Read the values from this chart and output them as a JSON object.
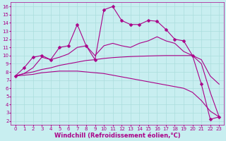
{
  "xlabel": "Windchill (Refroidissement éolien,°C)",
  "background_color": "#c8eef0",
  "grid_color": "#aadddd",
  "line_color": "#aa0088",
  "xlim": [
    -0.5,
    23.5
  ],
  "ylim": [
    1.5,
    16.5
  ],
  "xticks": [
    0,
    1,
    2,
    3,
    4,
    5,
    6,
    7,
    8,
    9,
    10,
    11,
    12,
    13,
    14,
    15,
    16,
    17,
    18,
    19,
    20,
    21,
    22,
    23
  ],
  "yticks": [
    2,
    3,
    4,
    5,
    6,
    7,
    8,
    9,
    10,
    11,
    12,
    13,
    14,
    15,
    16
  ],
  "series": [
    {
      "x": [
        0,
        1,
        2,
        3,
        4,
        5,
        6,
        7,
        8,
        9,
        10,
        11,
        12,
        13,
        14,
        15,
        16,
        17,
        18,
        19,
        20,
        21,
        22,
        23
      ],
      "y": [
        7.5,
        8.5,
        9.8,
        10.0,
        9.5,
        11.0,
        11.2,
        13.8,
        11.2,
        9.5,
        15.6,
        16.0,
        14.3,
        13.8,
        13.8,
        14.3,
        14.2,
        13.2,
        12.0,
        11.8,
        10.0,
        6.5,
        2.2,
        2.5
      ],
      "marker": true
    },
    {
      "x": [
        0,
        1,
        2,
        3,
        4,
        5,
        6,
        7,
        8,
        9,
        10,
        11,
        12,
        13,
        14,
        15,
        16,
        17,
        18,
        19,
        20,
        21,
        22,
        23
      ],
      "y": [
        7.5,
        7.8,
        8.5,
        9.8,
        9.5,
        9.8,
        10.2,
        11.0,
        11.2,
        10.0,
        11.2,
        11.5,
        11.2,
        11.0,
        11.5,
        11.8,
        12.3,
        11.8,
        11.5,
        10.5,
        10.0,
        9.5,
        7.5,
        6.5
      ],
      "marker": false
    },
    {
      "x": [
        0,
        1,
        2,
        3,
        4,
        5,
        6,
        7,
        8,
        9,
        10,
        11,
        12,
        13,
        14,
        15,
        16,
        17,
        18,
        19,
        20,
        21,
        22,
        23
      ],
      "y": [
        7.5,
        7.8,
        8.0,
        8.3,
        8.5,
        8.8,
        9.0,
        9.2,
        9.4,
        9.5,
        9.65,
        9.75,
        9.82,
        9.88,
        9.92,
        9.95,
        9.98,
        10.0,
        10.0,
        10.0,
        10.0,
        9.0,
        5.5,
        2.5
      ],
      "marker": false
    },
    {
      "x": [
        0,
        1,
        2,
        3,
        4,
        5,
        6,
        7,
        8,
        9,
        10,
        11,
        12,
        13,
        14,
        15,
        16,
        17,
        18,
        19,
        20,
        21,
        22,
        23
      ],
      "y": [
        7.5,
        7.6,
        7.7,
        7.9,
        8.0,
        8.1,
        8.1,
        8.1,
        8.0,
        7.9,
        7.8,
        7.6,
        7.4,
        7.2,
        7.0,
        6.8,
        6.6,
        6.4,
        6.2,
        6.0,
        5.5,
        4.5,
        3.2,
        2.5
      ],
      "marker": false
    }
  ],
  "tick_fontsize": 5,
  "label_fontsize": 6,
  "linewidth": 0.8,
  "markersize": 2.5,
  "figsize": [
    3.2,
    2.0
  ],
  "dpi": 100
}
